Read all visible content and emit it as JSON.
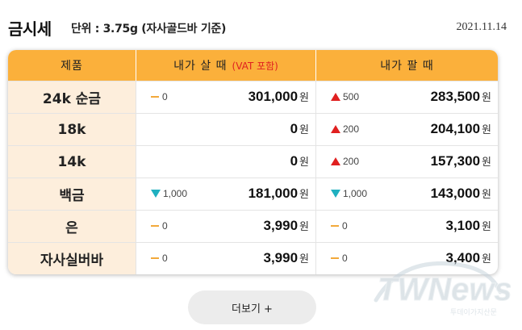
{
  "header": {
    "title": "금시세",
    "unit": "단위 : 3.75g (자사골드바 기준)",
    "date": "2021.11.14"
  },
  "table": {
    "columns": {
      "product": "제품",
      "buy": "내가 살 때",
      "buy_note": "(VAT 포함)",
      "sell": "내가 팔 때"
    },
    "currency": "원",
    "rows": [
      {
        "name": "24k 순금",
        "buy_change": {
          "dir": "flat",
          "value": "0"
        },
        "buy_price": "301,000",
        "sell_change": {
          "dir": "up",
          "value": "500"
        },
        "sell_price": "283,500"
      },
      {
        "name": "18k",
        "buy_change": null,
        "buy_price": "0",
        "sell_change": {
          "dir": "up",
          "value": "200"
        },
        "sell_price": "204,100"
      },
      {
        "name": "14k",
        "buy_change": null,
        "buy_price": "0",
        "sell_change": {
          "dir": "up",
          "value": "200"
        },
        "sell_price": "157,300"
      },
      {
        "name": "백금",
        "buy_change": {
          "dir": "down",
          "value": "1,000"
        },
        "buy_price": "181,000",
        "sell_change": {
          "dir": "down",
          "value": "1,000"
        },
        "sell_price": "143,000"
      },
      {
        "name": "은",
        "buy_change": {
          "dir": "flat",
          "value": "0"
        },
        "buy_price": "3,990",
        "sell_change": {
          "dir": "flat",
          "value": "0"
        },
        "sell_price": "3,100"
      },
      {
        "name": "자사실버바",
        "buy_change": {
          "dir": "flat",
          "value": "0"
        },
        "buy_price": "3,990",
        "sell_change": {
          "dir": "flat",
          "value": "0"
        },
        "sell_price": "3,400"
      }
    ]
  },
  "more_button": "더보기 +",
  "watermark": {
    "logo": "TWNews",
    "tagline": "투데이가지산문"
  },
  "colors": {
    "header_bg": "#fbb03b",
    "name_bg": "#fdeedc",
    "up": "#e02020",
    "down": "#1fb0c0",
    "flat": "#f2a93b",
    "vat_note": "#e02020"
  }
}
